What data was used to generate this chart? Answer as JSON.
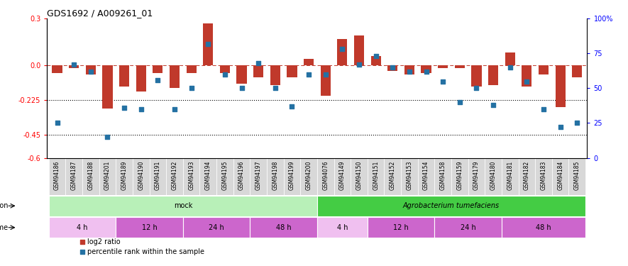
{
  "title": "GDS1692 / A009261_01",
  "samples": [
    "GSM94186",
    "GSM94187",
    "GSM94188",
    "GSM94201",
    "GSM94189",
    "GSM94190",
    "GSM94191",
    "GSM94192",
    "GSM94193",
    "GSM94194",
    "GSM94195",
    "GSM94196",
    "GSM94197",
    "GSM94198",
    "GSM94199",
    "GSM94200",
    "GSM94076",
    "GSM94149",
    "GSM94150",
    "GSM94151",
    "GSM94152",
    "GSM94153",
    "GSM94154",
    "GSM94158",
    "GSM94159",
    "GSM94179",
    "GSM94180",
    "GSM94181",
    "GSM94182",
    "GSM94183",
    "GSM94184",
    "GSM94185"
  ],
  "log2_ratio": [
    -0.05,
    -0.02,
    -0.06,
    -0.28,
    -0.14,
    -0.17,
    -0.05,
    -0.15,
    -0.05,
    0.27,
    -0.05,
    -0.12,
    -0.08,
    -0.13,
    -0.08,
    0.04,
    -0.2,
    0.17,
    0.19,
    0.06,
    -0.04,
    -0.06,
    -0.05,
    -0.02,
    -0.02,
    -0.14,
    -0.13,
    0.08,
    -0.14,
    -0.06,
    -0.27,
    -0.08
  ],
  "percentile": [
    25,
    67,
    62,
    15,
    36,
    35,
    56,
    35,
    50,
    82,
    60,
    50,
    68,
    50,
    37,
    60,
    60,
    78,
    67,
    73,
    65,
    62,
    62,
    55,
    40,
    50,
    38,
    65,
    55,
    35,
    22,
    25
  ],
  "bar_color": "#c0392b",
  "dot_color": "#2471a3",
  "ylim_left": [
    -0.6,
    0.3
  ],
  "yticks_left": [
    -0.6,
    -0.45,
    -0.225,
    0.0,
    0.3
  ],
  "ylim_right": [
    0,
    100
  ],
  "yticks_right": [
    0,
    25,
    50,
    75,
    100
  ],
  "hline_values": [
    -0.45,
    -0.225
  ],
  "infection_groups": [
    {
      "label": "mock",
      "start": 0,
      "end": 16,
      "color": "#b8f0b8",
      "italic": false
    },
    {
      "label": "Agrobacterium tumefaciens",
      "start": 16,
      "end": 32,
      "color": "#44cc44",
      "italic": true
    }
  ],
  "time_groups": [
    {
      "label": "4 h",
      "start": 0,
      "end": 4,
      "color": "#f0c0f0"
    },
    {
      "label": "12 h",
      "start": 4,
      "end": 8,
      "color": "#cc66cc"
    },
    {
      "label": "24 h",
      "start": 8,
      "end": 12,
      "color": "#cc66cc"
    },
    {
      "label": "48 h",
      "start": 12,
      "end": 16,
      "color": "#cc66cc"
    },
    {
      "label": "4 h",
      "start": 16,
      "end": 19,
      "color": "#f0c0f0"
    },
    {
      "label": "12 h",
      "start": 19,
      "end": 23,
      "color": "#cc66cc"
    },
    {
      "label": "24 h",
      "start": 23,
      "end": 27,
      "color": "#cc66cc"
    },
    {
      "label": "48 h",
      "start": 27,
      "end": 32,
      "color": "#cc66cc"
    }
  ],
  "legend_red_label": "log2 ratio",
  "legend_blue_label": "percentile rank within the sample",
  "tick_bg_color": "#d8d8d8",
  "tick_label_fontsize": 5.5
}
